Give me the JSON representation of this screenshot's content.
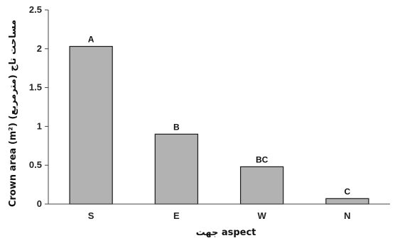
{
  "chart_data": {
    "type": "bar",
    "categories": [
      "S",
      "E",
      "W",
      "N"
    ],
    "values": [
      2.03,
      0.9,
      0.48,
      0.07
    ],
    "data_labels": [
      "A",
      "B",
      "BC",
      "C"
    ],
    "ylabel": "Crown area (m²) مساحت تاج (مترمربع)",
    "xlabel": "جهت aspect",
    "ylim": [
      0,
      2.5
    ],
    "yticks": [
      "0",
      "0.5",
      "1",
      "1.5",
      "2",
      "2.5"
    ],
    "grid": false,
    "bar_color": "#b2b2b2",
    "bar_edge_color": "#1a1a1a"
  }
}
